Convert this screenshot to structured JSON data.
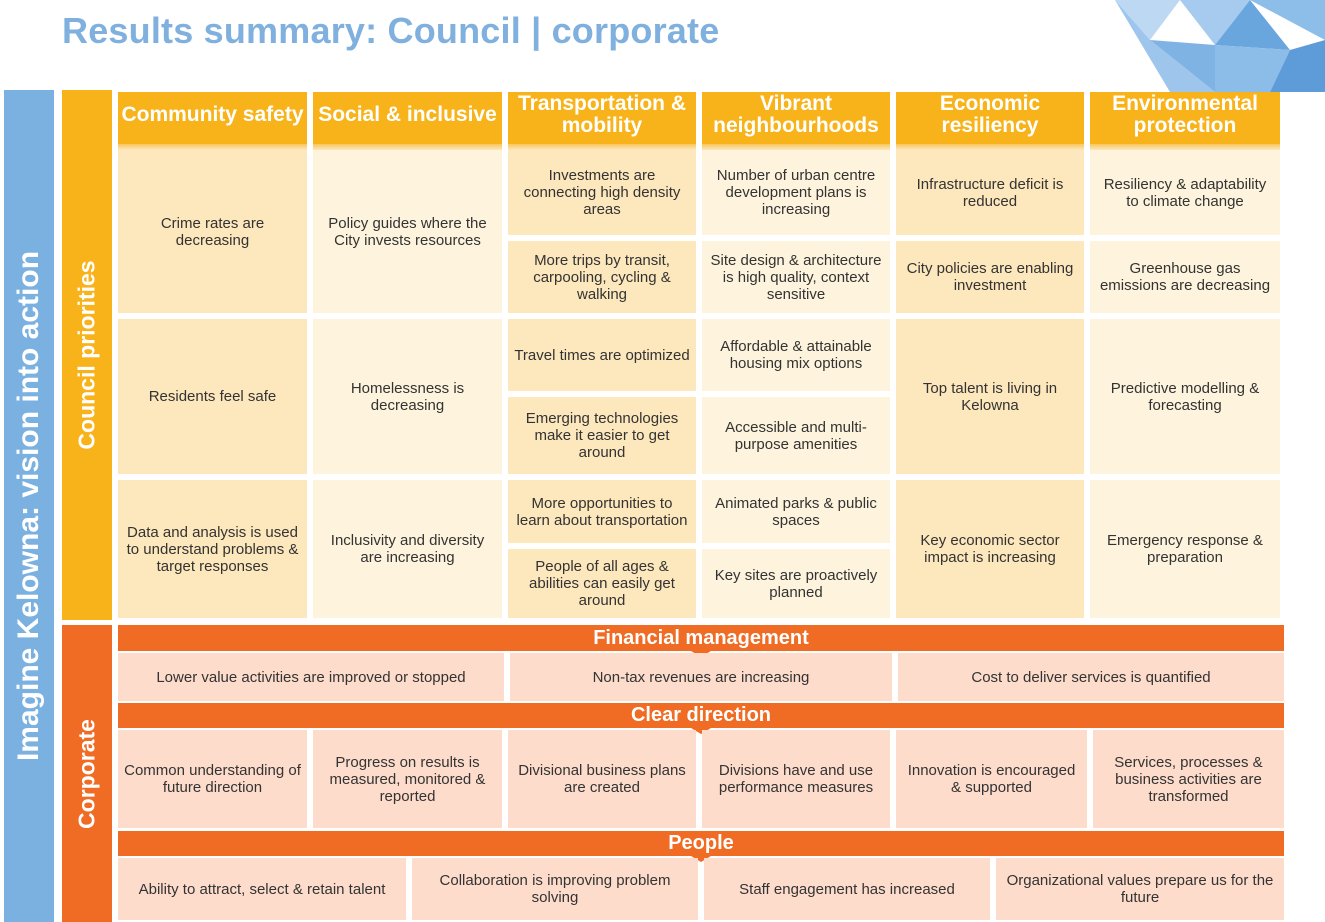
{
  "title": "Results summary: Council | corporate",
  "side_labels": {
    "vision": "Imagine Kelowna: vision into action",
    "council": "Council priorities",
    "corporate": "Corporate"
  },
  "headers": [
    "Community safety",
    "Social & inclusive",
    "Transportation & mobility",
    "Vibrant neighbourhoods",
    "Economic resiliency",
    "Environmental protection"
  ],
  "council": {
    "community_safety": [
      "Crime rates are decreasing",
      "Residents feel safe",
      "Data and analysis is used to understand problems & target responses"
    ],
    "social_inclusive": [
      "Policy guides where the City invests resources",
      "Homelessness is decreasing",
      "Inclusivity and diversity are increasing"
    ],
    "transportation": [
      "Investments are connecting high density areas",
      "More trips by transit, carpooling, cycling & walking",
      "Travel times are optimized",
      "Emerging technologies make it easier to get around",
      "More opportunities to learn about transportation",
      "People of all ages & abilities can easily get around"
    ],
    "vibrant": [
      "Number of urban centre development plans is increasing",
      "Site design & architecture is high quality, context sensitive",
      "Affordable & attainable housing mix options",
      "Accessible and multi-purpose amenities",
      "Animated parks & public spaces",
      "Key sites are proactively planned"
    ],
    "economic": [
      "Infrastructure deficit is reduced",
      "City policies are enabling investment",
      "Top talent is living in Kelowna",
      "Key economic sector impact is increasing"
    ],
    "environmental": [
      "Resiliency & adaptability to climate change",
      "Greenhouse gas emissions are decreasing",
      "Predictive modelling & forecasting",
      "Emergency response & preparation"
    ]
  },
  "corporate": {
    "financial": {
      "title": "Financial management",
      "items": [
        "Lower value activities are improved or stopped",
        "Non-tax revenues are increasing",
        "Cost to deliver services is quantified"
      ]
    },
    "direction": {
      "title": "Clear direction",
      "items": [
        "Common understanding of future direction",
        "Progress on results is measured, monitored & reported",
        "Divisional business plans are created",
        "Divisions have and use performance measures",
        "Innovation is encouraged & supported",
        "Services, processes & business activities are transformed"
      ]
    },
    "people": {
      "title": "People",
      "items": [
        "Ability to attract, select & retain talent",
        "Collaboration is improving problem solving",
        "Staff engagement has increased",
        "Organizational values prepare us for the future"
      ]
    }
  },
  "colors": {
    "title_blue": "#7fb0de",
    "council_yellow": "#f8b31b",
    "corporate_orange": "#f06b23",
    "cell_light": "#fef3dc",
    "cell_mid": "#fde7bc",
    "corporate_cell": "#fddccb"
  }
}
